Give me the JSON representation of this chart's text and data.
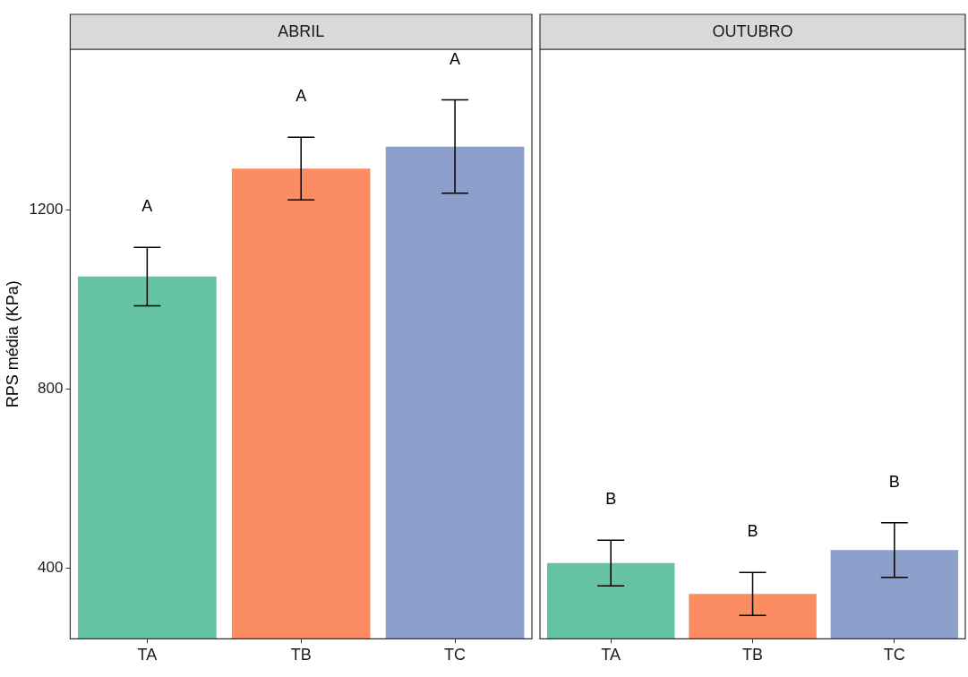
{
  "chart_data": [
    {
      "type": "bar",
      "title": "ABRIL",
      "ylabel": "RPS média (KPa)",
      "categories": [
        "TA",
        "TB",
        "TC"
      ],
      "values": [
        1051,
        1292,
        1341
      ],
      "colors": [
        "#66c2a5",
        "#fc8d62",
        "#8da0cb"
      ],
      "errors": [
        65,
        70,
        104
      ],
      "ylim": [
        243,
        1558
      ],
      "yticks": [
        400,
        800,
        1200
      ],
      "grid": false,
      "legend": false,
      "annotations": [
        "A",
        "A",
        "A"
      ]
    },
    {
      "type": "bar",
      "title": "OUTUBRO",
      "categories": [
        "TA",
        "TB",
        "TC"
      ],
      "values": [
        412,
        343,
        441
      ],
      "colors": [
        "#66c2a5",
        "#fc8d62",
        "#8da0cb"
      ],
      "errors": [
        51,
        48,
        61
      ],
      "ylim": [
        243,
        1558
      ],
      "yticks": [
        400,
        800,
        1200
      ],
      "grid": false,
      "legend": false,
      "tick_labels": "x",
      "annotations": [
        "B",
        "B",
        "B"
      ]
    }
  ]
}
